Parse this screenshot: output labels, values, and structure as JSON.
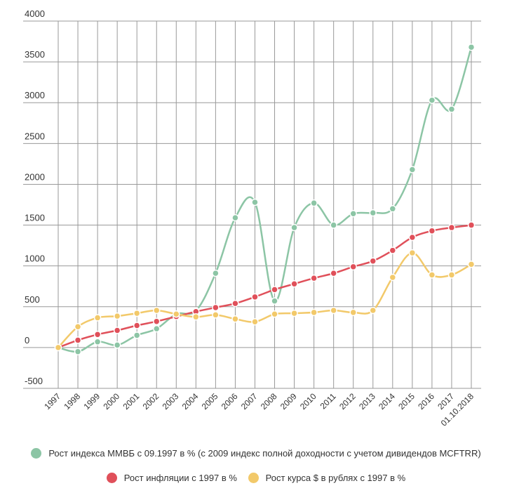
{
  "chart_data": {
    "type": "line",
    "categories": [
      "1997",
      "1998",
      "1999",
      "2000",
      "2001",
      "2002",
      "2003",
      "2004",
      "2005",
      "2006",
      "2007",
      "2008",
      "2009",
      "2010",
      "2011",
      "2012",
      "2013",
      "2014",
      "2015",
      "2016",
      "2017",
      "01.10.2018"
    ],
    "ylim": [
      -500,
      4000
    ],
    "yticks": [
      "-500",
      "0",
      "500",
      "1000",
      "1500",
      "2000",
      "2500",
      "3000",
      "3500",
      "4000"
    ],
    "grid": true,
    "legend_position": "bottom",
    "series": [
      {
        "name": "Рост индекса ММВБ с 09.1997 в % (с 2009 индекс полной доходности с учетом дивидендов MCFTRR)",
        "color": "#8cc5a5",
        "values": [
          0,
          -50,
          70,
          30,
          150,
          230,
          410,
          450,
          910,
          1590,
          1780,
          570,
          1470,
          1770,
          1500,
          1640,
          1650,
          1700,
          2180,
          3030,
          2920,
          3680
        ]
      },
      {
        "name": "Рост инфляции с 1997 в %",
        "color": "#e0505a",
        "values": [
          0,
          90,
          160,
          210,
          270,
          320,
          380,
          440,
          490,
          540,
          620,
          710,
          780,
          850,
          910,
          990,
          1060,
          1190,
          1350,
          1430,
          1470,
          1500
        ]
      },
      {
        "name": "Рост курса $ в рублях с 1997 в %",
        "color": "#f2c96a",
        "values": [
          0,
          255,
          365,
          385,
          420,
          455,
          410,
          375,
          400,
          350,
          315,
          410,
          420,
          430,
          455,
          430,
          455,
          860,
          1160,
          890,
          890,
          1020
        ]
      }
    ]
  }
}
